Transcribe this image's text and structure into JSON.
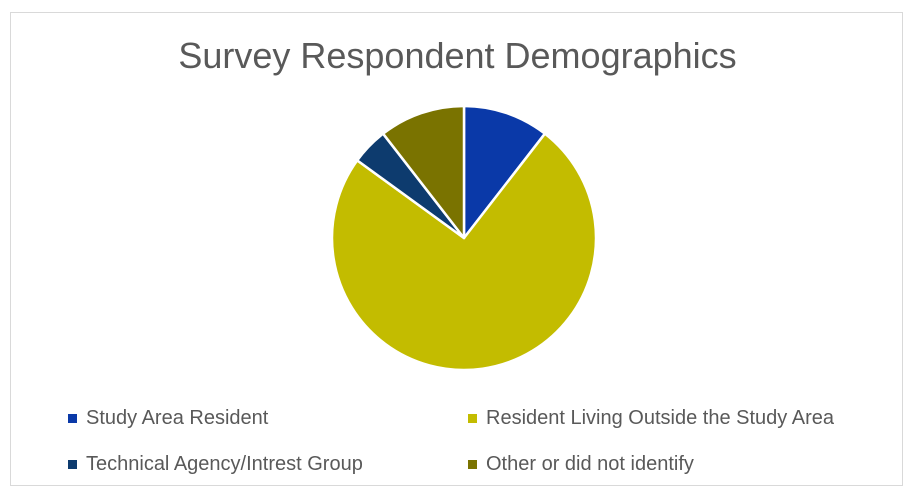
{
  "chart_data": {
    "type": "pie",
    "title": "Survey Respondent Demographics",
    "categories": [
      "Study Area Resident",
      "Resident Living Outside the Study Area",
      "Technical Agency/Intrest Group",
      "Other or did not identify"
    ],
    "values": [
      10.5,
      74.5,
      4.5,
      10.5
    ],
    "colors": [
      "#0a39a8",
      "#c3bc00",
      "#0d3b6e",
      "#7a7300"
    ],
    "slice_order": [
      0,
      1,
      2,
      3
    ],
    "start_angle_deg": 0,
    "legend_position": "bottom"
  }
}
